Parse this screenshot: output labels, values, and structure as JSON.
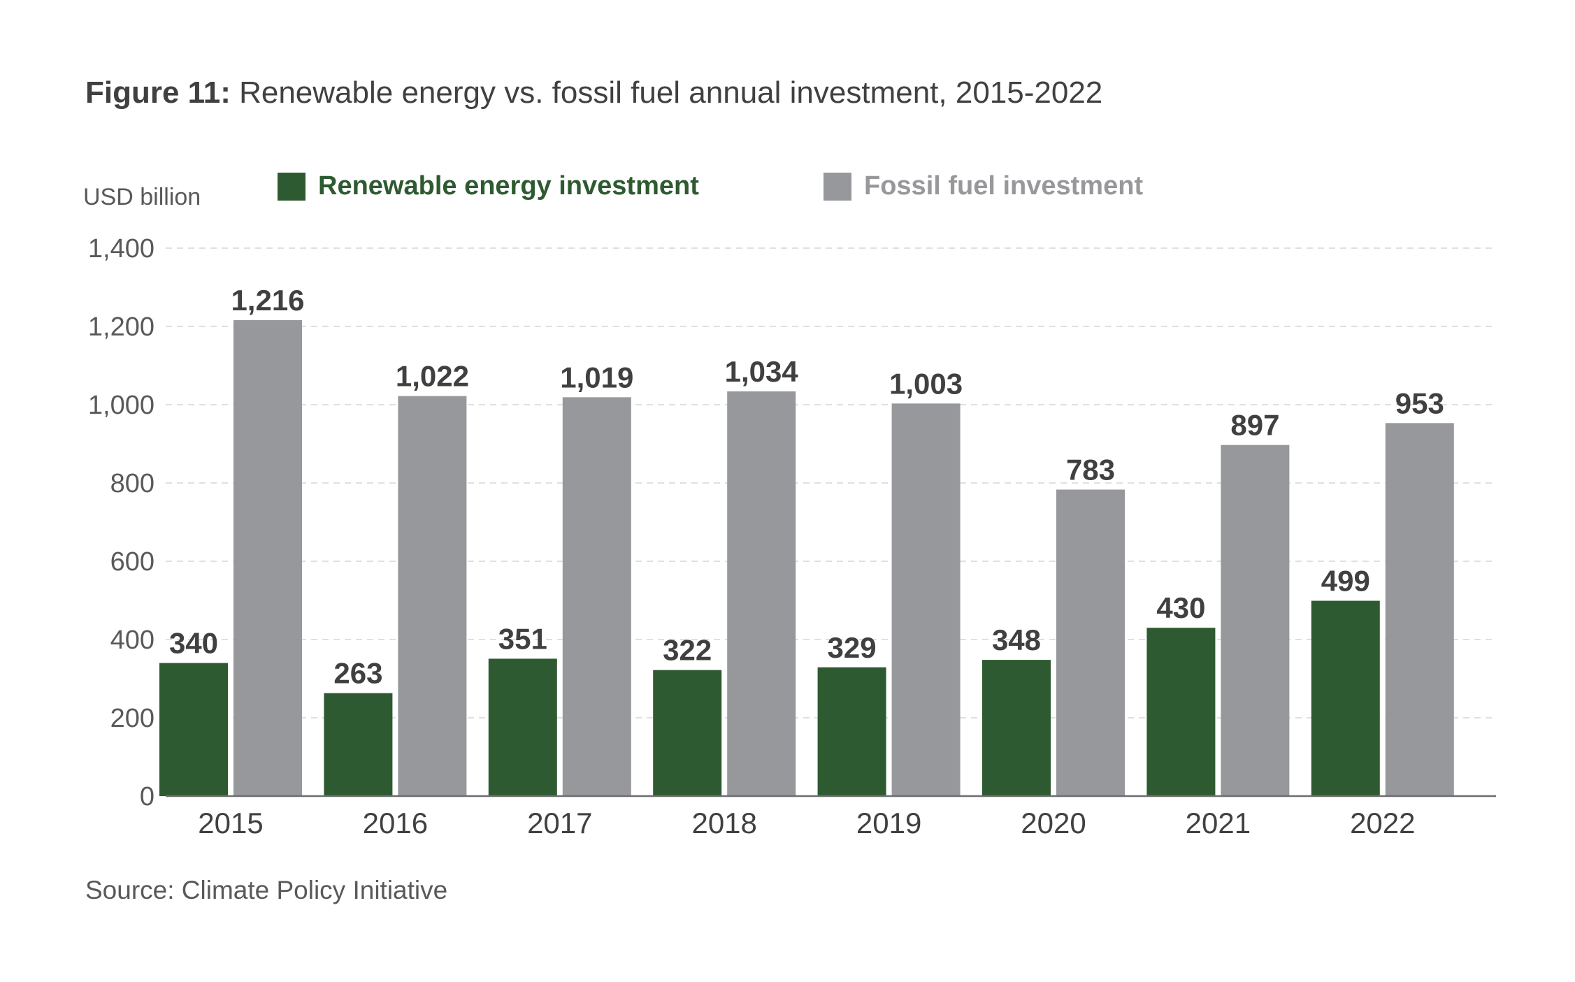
{
  "title_prefix": "Figure 11:",
  "title_rest": " Renewable energy vs. fossil fuel annual investment, 2015-2022",
  "source": "Source: Climate Policy Initiative",
  "chart_data": {
    "type": "bar",
    "title": "Figure 11: Renewable energy vs. fossil fuel annual investment, 2015-2022",
    "ylabel": "USD billion",
    "xlabel": "",
    "categories": [
      "2015",
      "2016",
      "2017",
      "2018",
      "2019",
      "2020",
      "2021",
      "2022"
    ],
    "series": [
      {
        "name": "Renewable energy investment",
        "color": "#2e5a31",
        "values": [
          340,
          263,
          351,
          322,
          329,
          348,
          430,
          499
        ],
        "labels": [
          "340",
          "263",
          "351",
          "322",
          "329",
          "348",
          "430",
          "499"
        ]
      },
      {
        "name": "Fossil fuel investment",
        "color": "#97989b",
        "values": [
          1216,
          1022,
          1019,
          1034,
          1003,
          783,
          897,
          953
        ],
        "labels": [
          "1,216",
          "1,022",
          "1,019",
          "1,034",
          "1,003",
          "783",
          "897",
          "953"
        ]
      }
    ],
    "ylim": [
      0,
      1400
    ],
    "yticks": [
      0,
      200,
      400,
      600,
      800,
      1000,
      1200,
      1400
    ],
    "ytick_labels": [
      "0",
      "200",
      "400",
      "600",
      "800",
      "1,000",
      "1,200",
      "1,400"
    ],
    "grid": true,
    "legend_position": "top"
  }
}
